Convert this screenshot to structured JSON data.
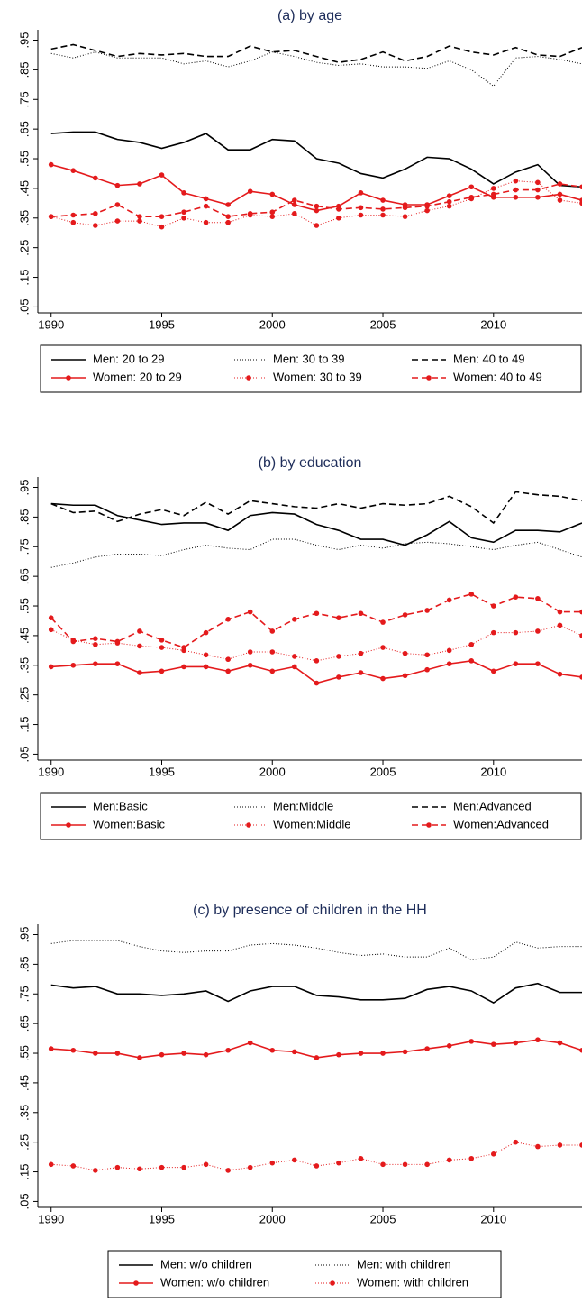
{
  "chart_data": [
    {
      "type": "line",
      "title": "(a) by age",
      "x": [
        1990,
        1991,
        1992,
        1993,
        1994,
        1995,
        1996,
        1997,
        1998,
        1999,
        2000,
        2001,
        2002,
        2003,
        2004,
        2005,
        2006,
        2007,
        2008,
        2009,
        2010,
        2011,
        2012,
        2013,
        2014
      ],
      "xlim": [
        1989.4,
        2014
      ],
      "xticks": [
        1990,
        1995,
        2000,
        2005,
        2010
      ],
      "ylim": [
        0.03,
        0.985
      ],
      "yticks": [
        {
          "value": 0.05,
          "label": ".05"
        },
        {
          "value": 0.15,
          "label": ".15"
        },
        {
          "value": 0.25,
          "label": ".25"
        },
        {
          "value": 0.35,
          "label": ".35"
        },
        {
          "value": 0.45,
          "label": ".45"
        },
        {
          "value": 0.55,
          "label": ".55"
        },
        {
          "value": 0.65,
          "label": ".65"
        },
        {
          "value": 0.75,
          "label": ".75"
        },
        {
          "value": 0.85,
          "label": ".85"
        },
        {
          "value": 0.95,
          "label": ".95"
        }
      ],
      "legend": "bottom",
      "series": [
        {
          "name": "Men: 20 to 29",
          "color": "#000000",
          "dash": "solid",
          "marker": false,
          "values": [
            0.635,
            0.64,
            0.64,
            0.615,
            0.605,
            0.585,
            0.605,
            0.635,
            0.58,
            0.58,
            0.615,
            0.61,
            0.55,
            0.535,
            0.5,
            0.485,
            0.515,
            0.555,
            0.55,
            0.515,
            0.465,
            0.505,
            0.53,
            0.46,
            0.455
          ]
        },
        {
          "name": "Men: 30 to 39",
          "color": "#000000",
          "dash": "dot",
          "marker": false,
          "values": [
            0.905,
            0.89,
            0.91,
            0.89,
            0.89,
            0.89,
            0.87,
            0.88,
            0.86,
            0.88,
            0.91,
            0.895,
            0.875,
            0.865,
            0.87,
            0.86,
            0.86,
            0.855,
            0.88,
            0.85,
            0.795,
            0.89,
            0.895,
            0.885,
            0.87
          ]
        },
        {
          "name": "Men: 40 to 49",
          "color": "#000000",
          "dash": "dash",
          "marker": false,
          "values": [
            0.92,
            0.935,
            0.915,
            0.895,
            0.905,
            0.9,
            0.905,
            0.895,
            0.895,
            0.93,
            0.91,
            0.915,
            0.895,
            0.875,
            0.885,
            0.91,
            0.88,
            0.895,
            0.93,
            0.91,
            0.9,
            0.925,
            0.9,
            0.895,
            0.925
          ]
        },
        {
          "name": "Women: 20 to 29",
          "color": "#e41a1c",
          "dash": "solid",
          "marker": true,
          "values": [
            0.53,
            0.51,
            0.485,
            0.46,
            0.465,
            0.495,
            0.435,
            0.415,
            0.395,
            0.44,
            0.43,
            0.395,
            0.375,
            0.39,
            0.435,
            0.41,
            0.395,
            0.395,
            0.425,
            0.455,
            0.42,
            0.42,
            0.42,
            0.43,
            0.41
          ]
        },
        {
          "name": "Women: 30 to 39",
          "color": "#e41a1c",
          "dash": "dot",
          "marker": true,
          "values": [
            0.355,
            0.335,
            0.325,
            0.34,
            0.34,
            0.32,
            0.35,
            0.335,
            0.335,
            0.36,
            0.355,
            0.365,
            0.325,
            0.35,
            0.36,
            0.36,
            0.355,
            0.375,
            0.39,
            0.415,
            0.45,
            0.475,
            0.47,
            0.41,
            0.4
          ]
        },
        {
          "name": "Women: 40 to 49",
          "color": "#e41a1c",
          "dash": "dash",
          "marker": true,
          "values": [
            0.355,
            0.36,
            0.365,
            0.395,
            0.355,
            0.355,
            0.37,
            0.39,
            0.355,
            0.365,
            0.37,
            0.41,
            0.39,
            0.38,
            0.385,
            0.38,
            0.385,
            0.39,
            0.405,
            0.42,
            0.43,
            0.445,
            0.445,
            0.465,
            0.455
          ]
        }
      ]
    },
    {
      "type": "line",
      "title": "(b) by education",
      "x": [
        1990,
        1991,
        1992,
        1993,
        1994,
        1995,
        1996,
        1997,
        1998,
        1999,
        2000,
        2001,
        2002,
        2003,
        2004,
        2005,
        2006,
        2007,
        2008,
        2009,
        2010,
        2011,
        2012,
        2013,
        2014
      ],
      "xlim": [
        1989.4,
        2014
      ],
      "xticks": [
        1990,
        1995,
        2000,
        2005,
        2010
      ],
      "ylim": [
        0.03,
        0.985
      ],
      "yticks": [
        {
          "value": 0.05,
          "label": ".05"
        },
        {
          "value": 0.15,
          "label": ".15"
        },
        {
          "value": 0.25,
          "label": ".25"
        },
        {
          "value": 0.35,
          "label": ".35"
        },
        {
          "value": 0.45,
          "label": ".45"
        },
        {
          "value": 0.55,
          "label": ".55"
        },
        {
          "value": 0.65,
          "label": ".65"
        },
        {
          "value": 0.75,
          "label": ".75"
        },
        {
          "value": 0.85,
          "label": ".85"
        },
        {
          "value": 0.95,
          "label": ".95"
        }
      ],
      "legend": "bottom",
      "series": [
        {
          "name": "Men:Basic",
          "color": "#000000",
          "dash": "solid",
          "marker": false,
          "values": [
            0.895,
            0.89,
            0.89,
            0.855,
            0.84,
            0.825,
            0.83,
            0.83,
            0.805,
            0.855,
            0.865,
            0.86,
            0.825,
            0.805,
            0.775,
            0.775,
            0.755,
            0.79,
            0.835,
            0.78,
            0.765,
            0.805,
            0.805,
            0.8,
            0.83
          ]
        },
        {
          "name": "Men:Middle",
          "color": "#000000",
          "dash": "dot",
          "marker": false,
          "values": [
            0.68,
            0.695,
            0.715,
            0.725,
            0.725,
            0.72,
            0.74,
            0.755,
            0.745,
            0.74,
            0.775,
            0.775,
            0.755,
            0.74,
            0.755,
            0.745,
            0.76,
            0.765,
            0.76,
            0.75,
            0.74,
            0.755,
            0.765,
            0.74,
            0.715
          ]
        },
        {
          "name": "Men:Advanced",
          "color": "#000000",
          "dash": "dash",
          "marker": false,
          "values": [
            0.895,
            0.865,
            0.87,
            0.835,
            0.86,
            0.875,
            0.855,
            0.9,
            0.86,
            0.905,
            0.895,
            0.885,
            0.88,
            0.895,
            0.88,
            0.895,
            0.89,
            0.895,
            0.92,
            0.885,
            0.83,
            0.935,
            0.925,
            0.92,
            0.905
          ]
        },
        {
          "name": "Women:Basic",
          "color": "#e41a1c",
          "dash": "solid",
          "marker": true,
          "values": [
            0.345,
            0.35,
            0.355,
            0.355,
            0.325,
            0.33,
            0.345,
            0.345,
            0.33,
            0.35,
            0.33,
            0.345,
            0.29,
            0.31,
            0.325,
            0.305,
            0.315,
            0.335,
            0.355,
            0.365,
            0.33,
            0.355,
            0.355,
            0.32,
            0.31
          ]
        },
        {
          "name": "Women:Middle",
          "color": "#e41a1c",
          "dash": "dot",
          "marker": true,
          "values": [
            0.47,
            0.435,
            0.42,
            0.425,
            0.415,
            0.41,
            0.4,
            0.385,
            0.37,
            0.395,
            0.395,
            0.38,
            0.365,
            0.38,
            0.39,
            0.41,
            0.39,
            0.385,
            0.4,
            0.42,
            0.46,
            0.46,
            0.465,
            0.485,
            0.45
          ]
        },
        {
          "name": "Women:Advanced",
          "color": "#e41a1c",
          "dash": "dash",
          "marker": true,
          "values": [
            0.51,
            0.43,
            0.44,
            0.43,
            0.465,
            0.435,
            0.41,
            0.46,
            0.505,
            0.53,
            0.465,
            0.505,
            0.525,
            0.51,
            0.525,
            0.495,
            0.52,
            0.535,
            0.57,
            0.59,
            0.55,
            0.58,
            0.575,
            0.53,
            0.53
          ]
        }
      ]
    },
    {
      "type": "line",
      "title": "(c) by presence of children in the HH",
      "x": [
        1990,
        1991,
        1992,
        1993,
        1994,
        1995,
        1996,
        1997,
        1998,
        1999,
        2000,
        2001,
        2002,
        2003,
        2004,
        2005,
        2006,
        2007,
        2008,
        2009,
        2010,
        2011,
        2012,
        2013,
        2014
      ],
      "xlim": [
        1989.4,
        2014
      ],
      "xticks": [
        1990,
        1995,
        2000,
        2005,
        2010
      ],
      "ylim": [
        0.03,
        0.985
      ],
      "yticks": [
        {
          "value": 0.05,
          "label": ".05"
        },
        {
          "value": 0.15,
          "label": ".15"
        },
        {
          "value": 0.25,
          "label": ".25"
        },
        {
          "value": 0.35,
          "label": ".35"
        },
        {
          "value": 0.45,
          "label": ".45"
        },
        {
          "value": 0.55,
          "label": ".55"
        },
        {
          "value": 0.65,
          "label": ".65"
        },
        {
          "value": 0.75,
          "label": ".75"
        },
        {
          "value": 0.85,
          "label": ".85"
        },
        {
          "value": 0.95,
          "label": ".95"
        }
      ],
      "legend": "bottom",
      "series": [
        {
          "name": "Men: w/o children",
          "color": "#000000",
          "dash": "solid",
          "marker": false,
          "values": [
            0.78,
            0.77,
            0.775,
            0.75,
            0.75,
            0.745,
            0.75,
            0.76,
            0.725,
            0.76,
            0.775,
            0.775,
            0.745,
            0.74,
            0.73,
            0.73,
            0.735,
            0.765,
            0.775,
            0.76,
            0.72,
            0.77,
            0.785,
            0.755,
            0.755
          ]
        },
        {
          "name": "Men: with children",
          "color": "#000000",
          "dash": "dot",
          "marker": false,
          "values": [
            0.92,
            0.93,
            0.93,
            0.93,
            0.91,
            0.895,
            0.89,
            0.895,
            0.895,
            0.915,
            0.92,
            0.915,
            0.905,
            0.89,
            0.88,
            0.885,
            0.875,
            0.875,
            0.905,
            0.865,
            0.875,
            0.925,
            0.905,
            0.91,
            0.91
          ]
        },
        {
          "name": "Women: w/o children",
          "color": "#e41a1c",
          "dash": "solid",
          "marker": true,
          "values": [
            0.565,
            0.56,
            0.55,
            0.55,
            0.535,
            0.545,
            0.55,
            0.545,
            0.56,
            0.585,
            0.56,
            0.555,
            0.535,
            0.545,
            0.55,
            0.55,
            0.555,
            0.565,
            0.575,
            0.59,
            0.58,
            0.585,
            0.595,
            0.585,
            0.56
          ]
        },
        {
          "name": "Women: with children",
          "color": "#e41a1c",
          "dash": "dot",
          "marker": true,
          "values": [
            0.175,
            0.17,
            0.155,
            0.165,
            0.16,
            0.165,
            0.165,
            0.175,
            0.155,
            0.165,
            0.18,
            0.19,
            0.17,
            0.18,
            0.195,
            0.175,
            0.175,
            0.175,
            0.19,
            0.195,
            0.21,
            0.25,
            0.235,
            0.24,
            0.24
          ]
        }
      ]
    }
  ]
}
